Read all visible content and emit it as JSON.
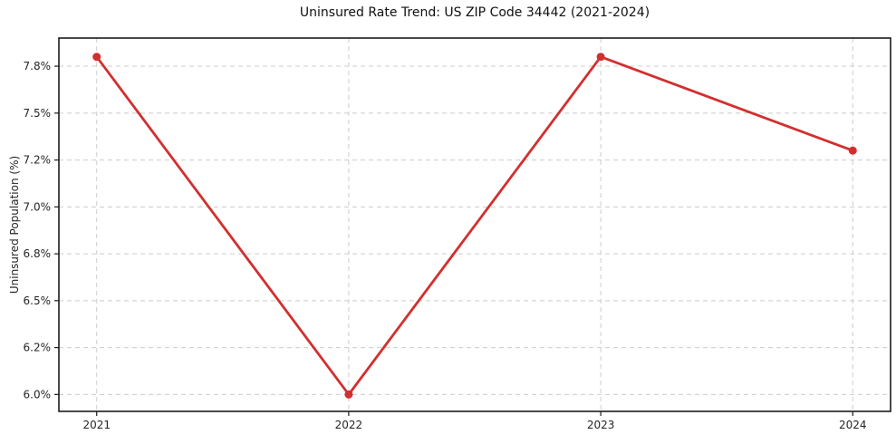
{
  "chart_data": {
    "type": "line",
    "title": "Uninsured Rate Trend: US ZIP Code 34442 (2021-2024)",
    "xlabel": "",
    "ylabel": "Uninsured Population (%)",
    "x": [
      2021,
      2022,
      2023,
      2024
    ],
    "x_tick_labels": [
      "2021",
      "2022",
      "2023",
      "2024"
    ],
    "series": [
      {
        "name": "Uninsured Rate",
        "values": [
          7.8,
          6.0,
          7.8,
          7.3
        ]
      }
    ],
    "xlim": [
      2020.85,
      2024.15
    ],
    "ylim": [
      5.91,
      7.9
    ],
    "yticks": {
      "values": [
        6.0,
        6.25,
        6.5,
        6.75,
        7.0,
        7.25,
        7.5,
        7.75
      ],
      "labels": [
        "6.0%",
        "6.2%",
        "6.5%",
        "6.8%",
        "7.0%",
        "7.2%",
        "7.5%",
        "7.8%"
      ]
    },
    "grid": true,
    "grid_style": "dashed",
    "legend": false,
    "marker": "o",
    "colors": {
      "line": "#d32f2f",
      "grid": "#cccccc",
      "spine": "#1c1c1c",
      "tick_text": "#262626",
      "background": "#ffffff"
    }
  }
}
